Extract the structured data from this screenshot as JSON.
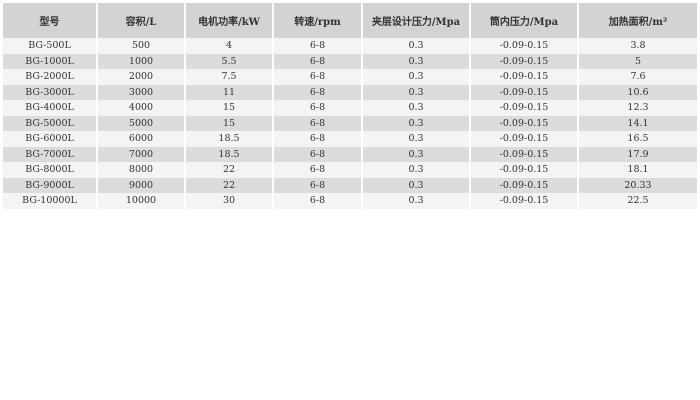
{
  "table": {
    "headers": [
      "型号",
      "容积/L",
      "电机功率/kW",
      "转速/rpm",
      "夹层设计压力/Mpa",
      "筒内压力/Mpa",
      "加热面积/m²"
    ],
    "rows": [
      [
        "BG-500L",
        "500",
        "4",
        "6-8",
        "0.3",
        "-0.09-0.15",
        "3.8"
      ],
      [
        "BG-1000L",
        "1000",
        "5.5",
        "6-8",
        "0.3",
        "-0.09-0.15",
        "5"
      ],
      [
        "BG-2000L",
        "2000",
        "7.5",
        "6-8",
        "0.3",
        "-0.09-0.15",
        "7.6"
      ],
      [
        "BG-3000L",
        "3000",
        "11",
        "6-8",
        "0.3",
        "-0.09-0.15",
        "10.6"
      ],
      [
        "BG-4000L",
        "4000",
        "15",
        "6-8",
        "0.3",
        "-0.09-0.15",
        "12.3"
      ],
      [
        "BG-5000L",
        "5000",
        "15",
        "6-8",
        "0.3",
        "-0.09-0.15",
        "14.1"
      ],
      [
        "BG-6000L",
        "6000",
        "18.5",
        "6-8",
        "0.3",
        "-0.09-0.15",
        "16.5"
      ],
      [
        "BG-7000L",
        "7000",
        "18.5",
        "6-8",
        "0.3",
        "-0.09-0.15",
        "17.9"
      ],
      [
        "BG-8000L",
        "8000",
        "22",
        "6-8",
        "0.3",
        "-0.09-0.15",
        "18.1"
      ],
      [
        "BG-9000L",
        "9000",
        "22",
        "6-8",
        "0.3",
        "-0.09-0.15",
        "20.33"
      ],
      [
        "BG-10000L",
        "10000",
        "30",
        "6-8",
        "0.3",
        "-0.09-0.15",
        "22.5"
      ]
    ]
  }
}
